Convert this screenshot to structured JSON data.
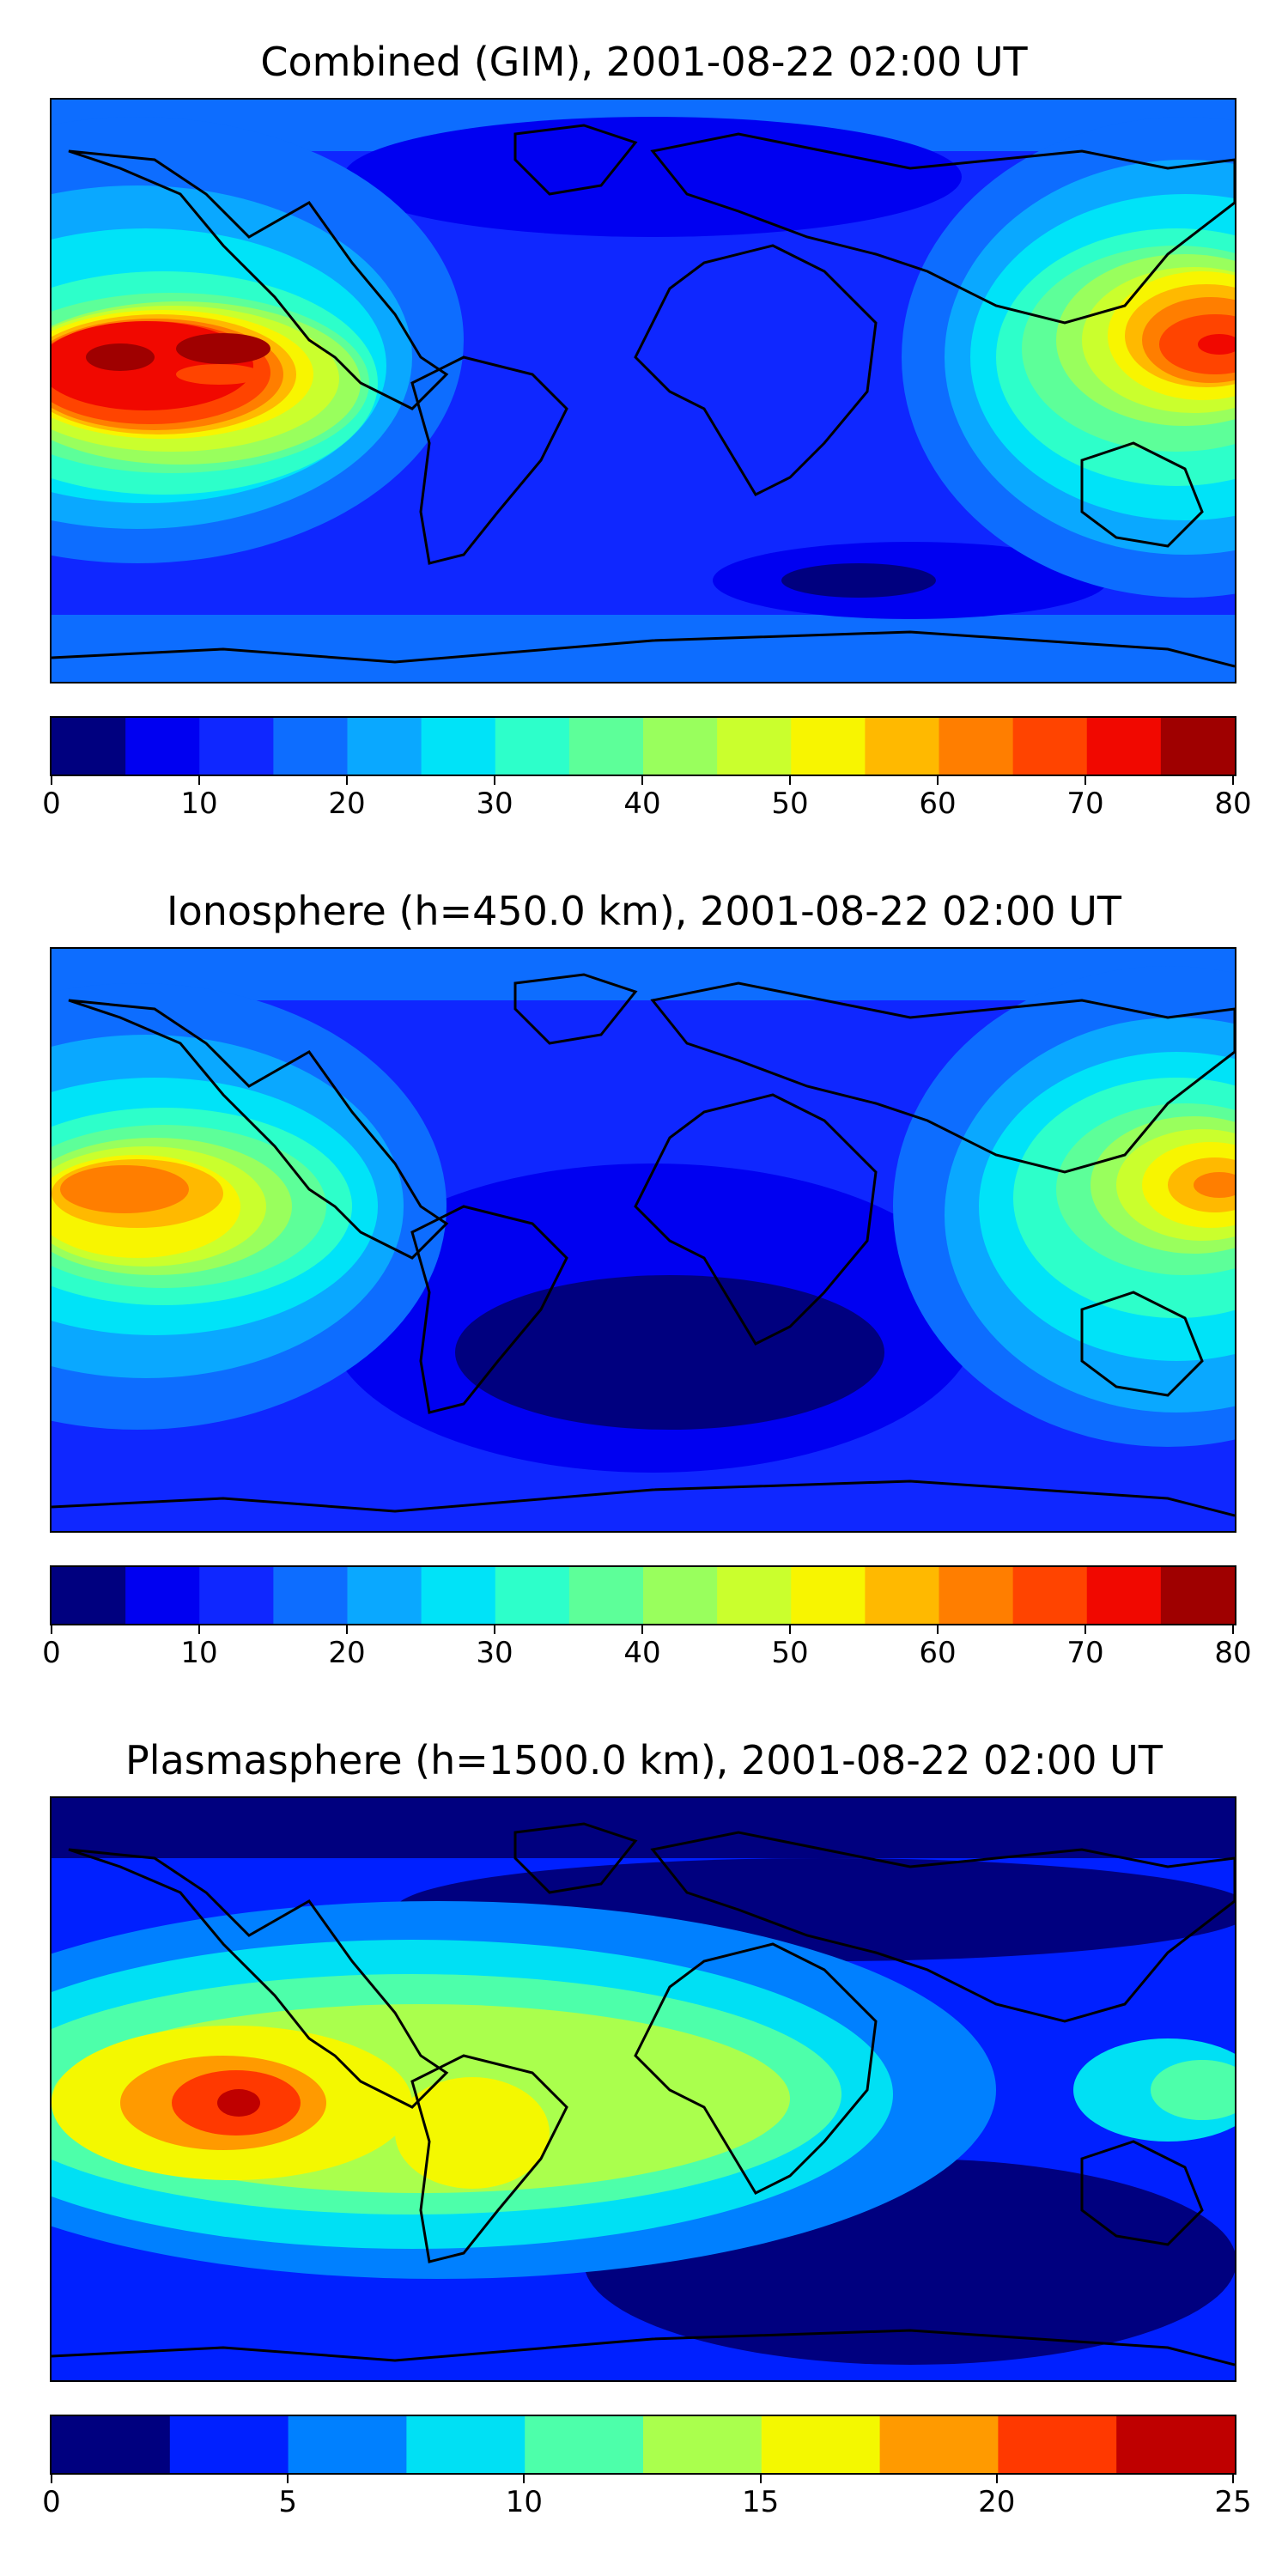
{
  "panels": [
    {
      "title": "Combined (GIM), 2001-08-22 02:00 UT",
      "colorbar": {
        "min": 0,
        "max": 80,
        "ticks": [
          "0",
          "10",
          "20",
          "30",
          "40",
          "50",
          "60",
          "70",
          "80"
        ],
        "tick_values": [
          0,
          10,
          20,
          30,
          40,
          50,
          60,
          70,
          80
        ],
        "levels": 16
      }
    },
    {
      "title": "Ionosphere  (h=450.0 km), 2001-08-22 02:00 UT",
      "colorbar": {
        "min": 0,
        "max": 80,
        "ticks": [
          "0",
          "10",
          "20",
          "30",
          "40",
          "50",
          "60",
          "70",
          "80"
        ],
        "tick_values": [
          0,
          10,
          20,
          30,
          40,
          50,
          60,
          70,
          80
        ],
        "levels": 16
      }
    },
    {
      "title": "Plasmasphere (h=1500.0 km), 2001-08-22 02:00 UT",
      "colorbar": {
        "min": 0,
        "max": 25,
        "ticks": [
          "0",
          "5",
          "10",
          "15",
          "20",
          "25"
        ],
        "tick_values": [
          0,
          5,
          10,
          15,
          20,
          25
        ],
        "levels": 10
      }
    }
  ],
  "colormap": "jet",
  "colors": {
    "jet16": [
      "#00007f",
      "#0000f1",
      "#0f27ff",
      "#0d6dff",
      "#0aa8ff",
      "#00e3f8",
      "#2dffca",
      "#5dff99",
      "#99ff5d",
      "#caff2d",
      "#f8f500",
      "#ffb900",
      "#ff7e00",
      "#ff4400",
      "#f10800",
      "#9f0000"
    ],
    "jet10": [
      "#00007f",
      "#0020ff",
      "#0080ff",
      "#00e0f4",
      "#4dffaa",
      "#aaff4d",
      "#f4f800",
      "#ff9a00",
      "#ff3900",
      "#bf0000"
    ],
    "coastline": "#000000"
  }
}
